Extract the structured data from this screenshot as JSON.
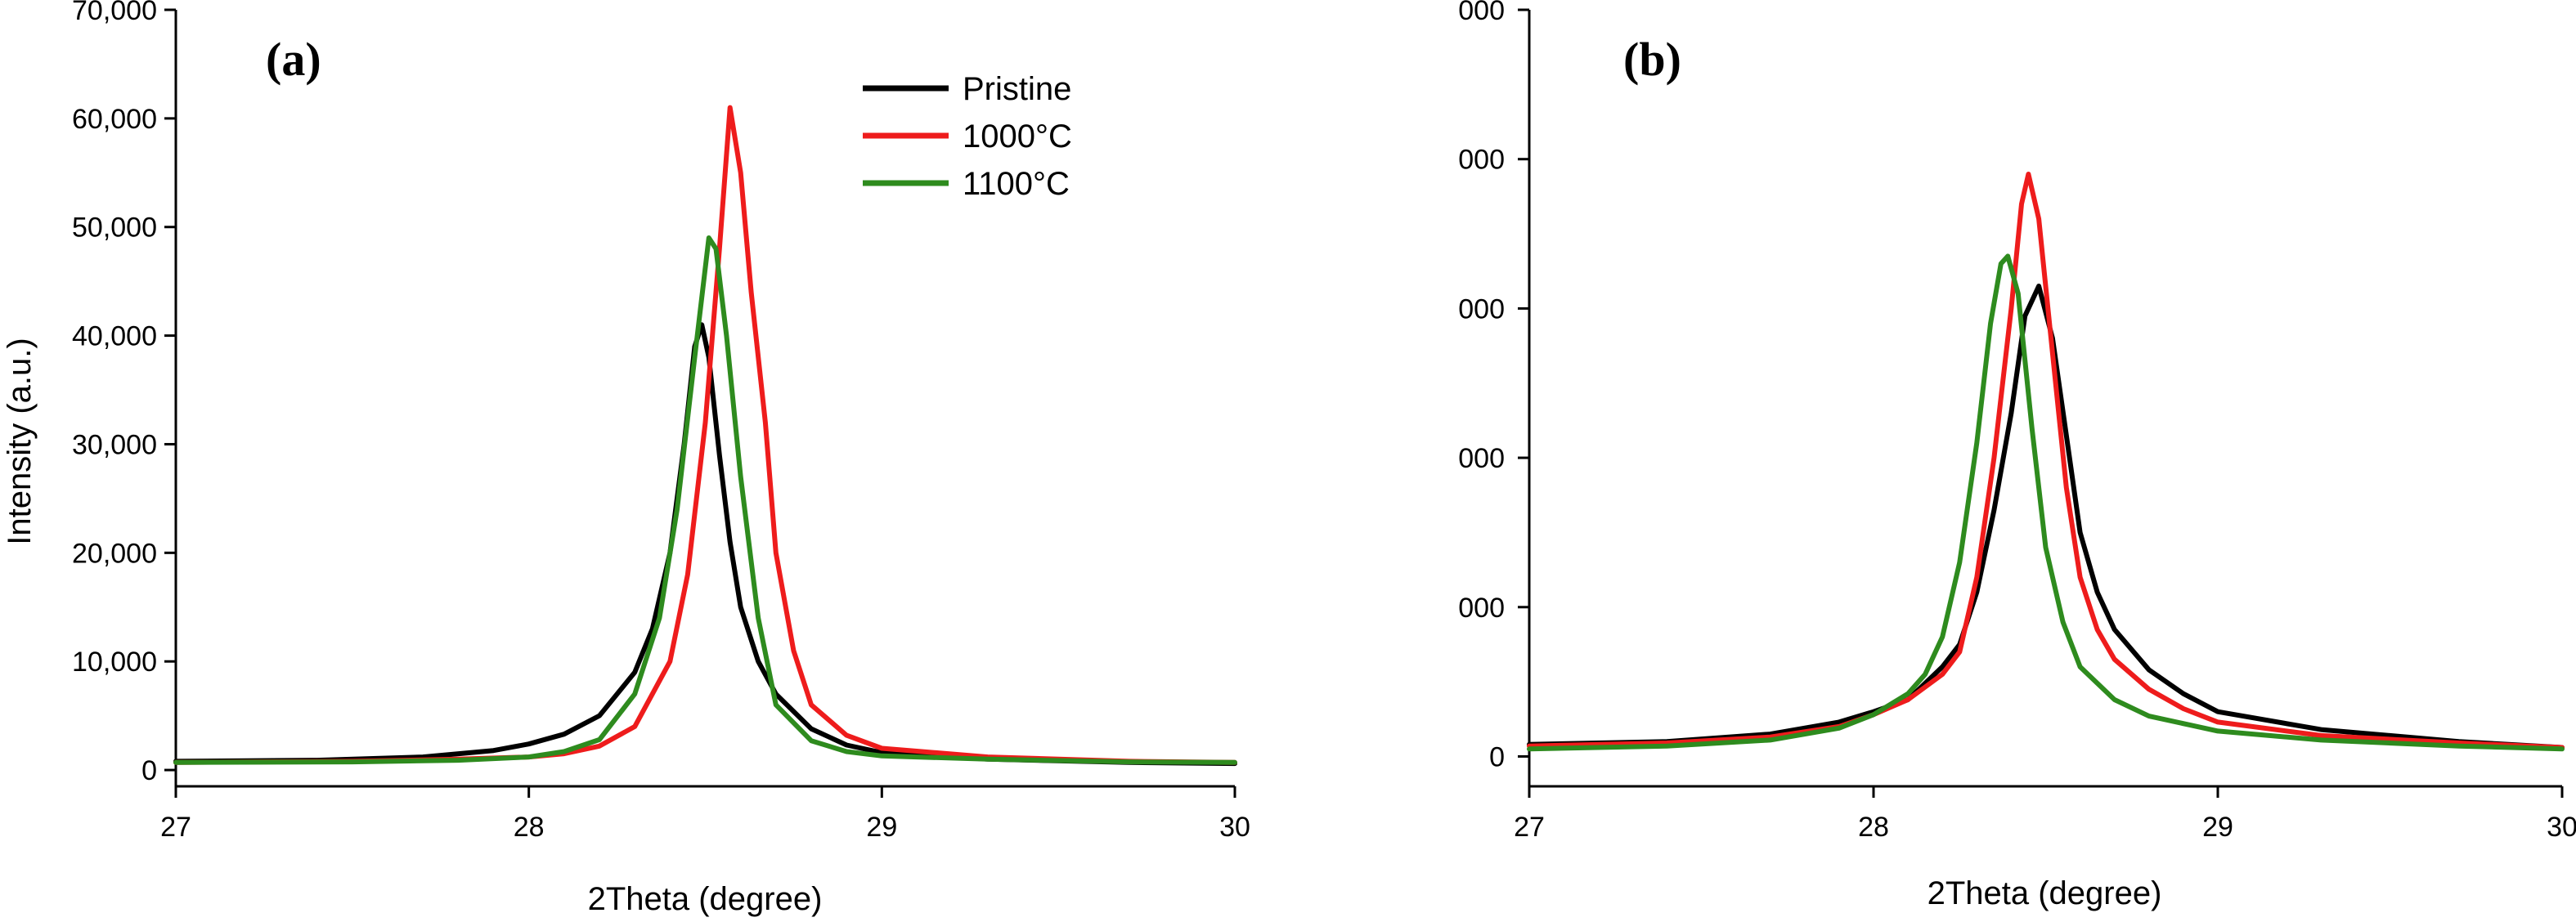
{
  "chart_data": [
    {
      "type": "line",
      "panel_label": "(a)",
      "xlabel": "2Theta (degree)",
      "ylabel": "Intensity (a.u.)",
      "xlim": [
        27,
        30
      ],
      "ylim": [
        -1500,
        70000
      ],
      "x_ticks": [
        27,
        28,
        29,
        30
      ],
      "x_tick_labels": [
        "27",
        "28",
        "29",
        "30"
      ],
      "y_ticks": [
        0,
        10000,
        20000,
        30000,
        40000,
        50000,
        60000,
        70000
      ],
      "y_tick_labels": [
        "0",
        "10,000",
        "20,000",
        "30,000",
        "40,000",
        "50,000",
        "60,000",
        "70,000"
      ],
      "legend": {
        "placement": "top-right"
      },
      "series": [
        {
          "name": "Pristine",
          "color": "#000000",
          "points": [
            [
              27.0,
              800
            ],
            [
              27.4,
              900
            ],
            [
              27.7,
              1200
            ],
            [
              27.9,
              1800
            ],
            [
              28.0,
              2400
            ],
            [
              28.1,
              3300
            ],
            [
              28.2,
              5000
            ],
            [
              28.3,
              9000
            ],
            [
              28.35,
              13000
            ],
            [
              28.4,
              20000
            ],
            [
              28.44,
              30000
            ],
            [
              28.47,
              39000
            ],
            [
              28.49,
              41000
            ],
            [
              28.51,
              38000
            ],
            [
              28.54,
              29000
            ],
            [
              28.57,
              21000
            ],
            [
              28.6,
              15000
            ],
            [
              28.65,
              10000
            ],
            [
              28.7,
              7000
            ],
            [
              28.8,
              3800
            ],
            [
              28.9,
              2300
            ],
            [
              29.0,
              1600
            ],
            [
              29.3,
              1000
            ],
            [
              29.7,
              700
            ],
            [
              30.0,
              600
            ]
          ]
        },
        {
          "name": "1000°C",
          "color": "#ee1c1c",
          "points": [
            [
              27.0,
              700
            ],
            [
              27.5,
              800
            ],
            [
              27.8,
              1000
            ],
            [
              28.0,
              1200
            ],
            [
              28.1,
              1500
            ],
            [
              28.2,
              2200
            ],
            [
              28.3,
              4000
            ],
            [
              28.4,
              10000
            ],
            [
              28.45,
              18000
            ],
            [
              28.5,
              32000
            ],
            [
              28.54,
              48000
            ],
            [
              28.57,
              61000
            ],
            [
              28.6,
              55000
            ],
            [
              28.63,
              44000
            ],
            [
              28.67,
              32000
            ],
            [
              28.7,
              20000
            ],
            [
              28.75,
              11000
            ],
            [
              28.8,
              6000
            ],
            [
              28.9,
              3200
            ],
            [
              29.0,
              2000
            ],
            [
              29.3,
              1200
            ],
            [
              29.7,
              800
            ],
            [
              30.0,
              700
            ]
          ]
        },
        {
          "name": "1100°C",
          "color": "#2e8b1e",
          "points": [
            [
              27.0,
              700
            ],
            [
              27.5,
              750
            ],
            [
              27.8,
              900
            ],
            [
              28.0,
              1200
            ],
            [
              28.1,
              1700
            ],
            [
              28.2,
              2800
            ],
            [
              28.3,
              7000
            ],
            [
              28.37,
              14000
            ],
            [
              28.42,
              24000
            ],
            [
              28.47,
              38000
            ],
            [
              28.51,
              49000
            ],
            [
              28.53,
              48000
            ],
            [
              28.56,
              40000
            ],
            [
              28.6,
              27000
            ],
            [
              28.65,
              14000
            ],
            [
              28.7,
              6000
            ],
            [
              28.8,
              2700
            ],
            [
              28.9,
              1700
            ],
            [
              29.0,
              1300
            ],
            [
              29.3,
              1000
            ],
            [
              29.7,
              750
            ],
            [
              30.0,
              700
            ]
          ]
        }
      ]
    },
    {
      "type": "line",
      "panel_label": "(b)",
      "xlabel": "2Theta (degree)",
      "ylabel": "",
      "xlim": [
        27,
        30
      ],
      "ylim": [
        -2,
        50
      ],
      "x_ticks": [
        27,
        28,
        29,
        30
      ],
      "x_tick_labels": [
        "27",
        "28",
        "29",
        "30"
      ],
      "y_ticks": [
        0,
        10,
        20,
        30,
        40,
        50
      ],
      "y_tick_labels": [
        "0",
        "000",
        "000",
        "000",
        "000",
        "000"
      ],
      "series": [
        {
          "name": "",
          "color": "#000000",
          "points": [
            [
              27.0,
              0.8
            ],
            [
              27.4,
              1.0
            ],
            [
              27.7,
              1.5
            ],
            [
              27.9,
              2.3
            ],
            [
              28.0,
              3.0
            ],
            [
              28.1,
              3.8
            ],
            [
              28.2,
              6.0
            ],
            [
              28.25,
              7.5
            ],
            [
              28.3,
              11.0
            ],
            [
              28.35,
              16.5
            ],
            [
              28.4,
              23.0
            ],
            [
              28.44,
              29.5
            ],
            [
              28.48,
              31.5
            ],
            [
              28.52,
              28.0
            ],
            [
              28.56,
              21.5
            ],
            [
              28.6,
              15.0
            ],
            [
              28.65,
              11.0
            ],
            [
              28.7,
              8.5
            ],
            [
              28.8,
              5.8
            ],
            [
              28.9,
              4.2
            ],
            [
              29.0,
              3.0
            ],
            [
              29.3,
              1.8
            ],
            [
              29.7,
              1.0
            ],
            [
              30.0,
              0.6
            ]
          ]
        },
        {
          "name": "",
          "color": "#ee1c1c",
          "points": [
            [
              27.0,
              0.7
            ],
            [
              27.4,
              0.9
            ],
            [
              27.7,
              1.3
            ],
            [
              27.9,
              2.0
            ],
            [
              28.0,
              2.8
            ],
            [
              28.1,
              3.8
            ],
            [
              28.2,
              5.5
            ],
            [
              28.25,
              7.0
            ],
            [
              28.3,
              12.0
            ],
            [
              28.35,
              20.0
            ],
            [
              28.4,
              30.0
            ],
            [
              28.43,
              37.0
            ],
            [
              28.45,
              39.0
            ],
            [
              28.48,
              36.0
            ],
            [
              28.52,
              27.0
            ],
            [
              28.56,
              18.0
            ],
            [
              28.6,
              12.0
            ],
            [
              28.65,
              8.5
            ],
            [
              28.7,
              6.5
            ],
            [
              28.8,
              4.5
            ],
            [
              28.9,
              3.2
            ],
            [
              29.0,
              2.3
            ],
            [
              29.3,
              1.4
            ],
            [
              29.7,
              0.9
            ],
            [
              30.0,
              0.6
            ]
          ]
        },
        {
          "name": "",
          "color": "#2e8b1e",
          "points": [
            [
              27.0,
              0.5
            ],
            [
              27.4,
              0.7
            ],
            [
              27.7,
              1.1
            ],
            [
              27.9,
              1.9
            ],
            [
              28.0,
              2.8
            ],
            [
              28.1,
              4.2
            ],
            [
              28.15,
              5.5
            ],
            [
              28.2,
              8.0
            ],
            [
              28.25,
              13.0
            ],
            [
              28.3,
              21.0
            ],
            [
              28.34,
              29.0
            ],
            [
              28.37,
              33.0
            ],
            [
              28.39,
              33.5
            ],
            [
              28.42,
              31.0
            ],
            [
              28.46,
              22.0
            ],
            [
              28.5,
              14.0
            ],
            [
              28.55,
              9.0
            ],
            [
              28.6,
              6.0
            ],
            [
              28.7,
              3.8
            ],
            [
              28.8,
              2.7
            ],
            [
              29.0,
              1.7
            ],
            [
              29.3,
              1.1
            ],
            [
              29.7,
              0.7
            ],
            [
              30.0,
              0.5
            ]
          ]
        }
      ]
    }
  ]
}
